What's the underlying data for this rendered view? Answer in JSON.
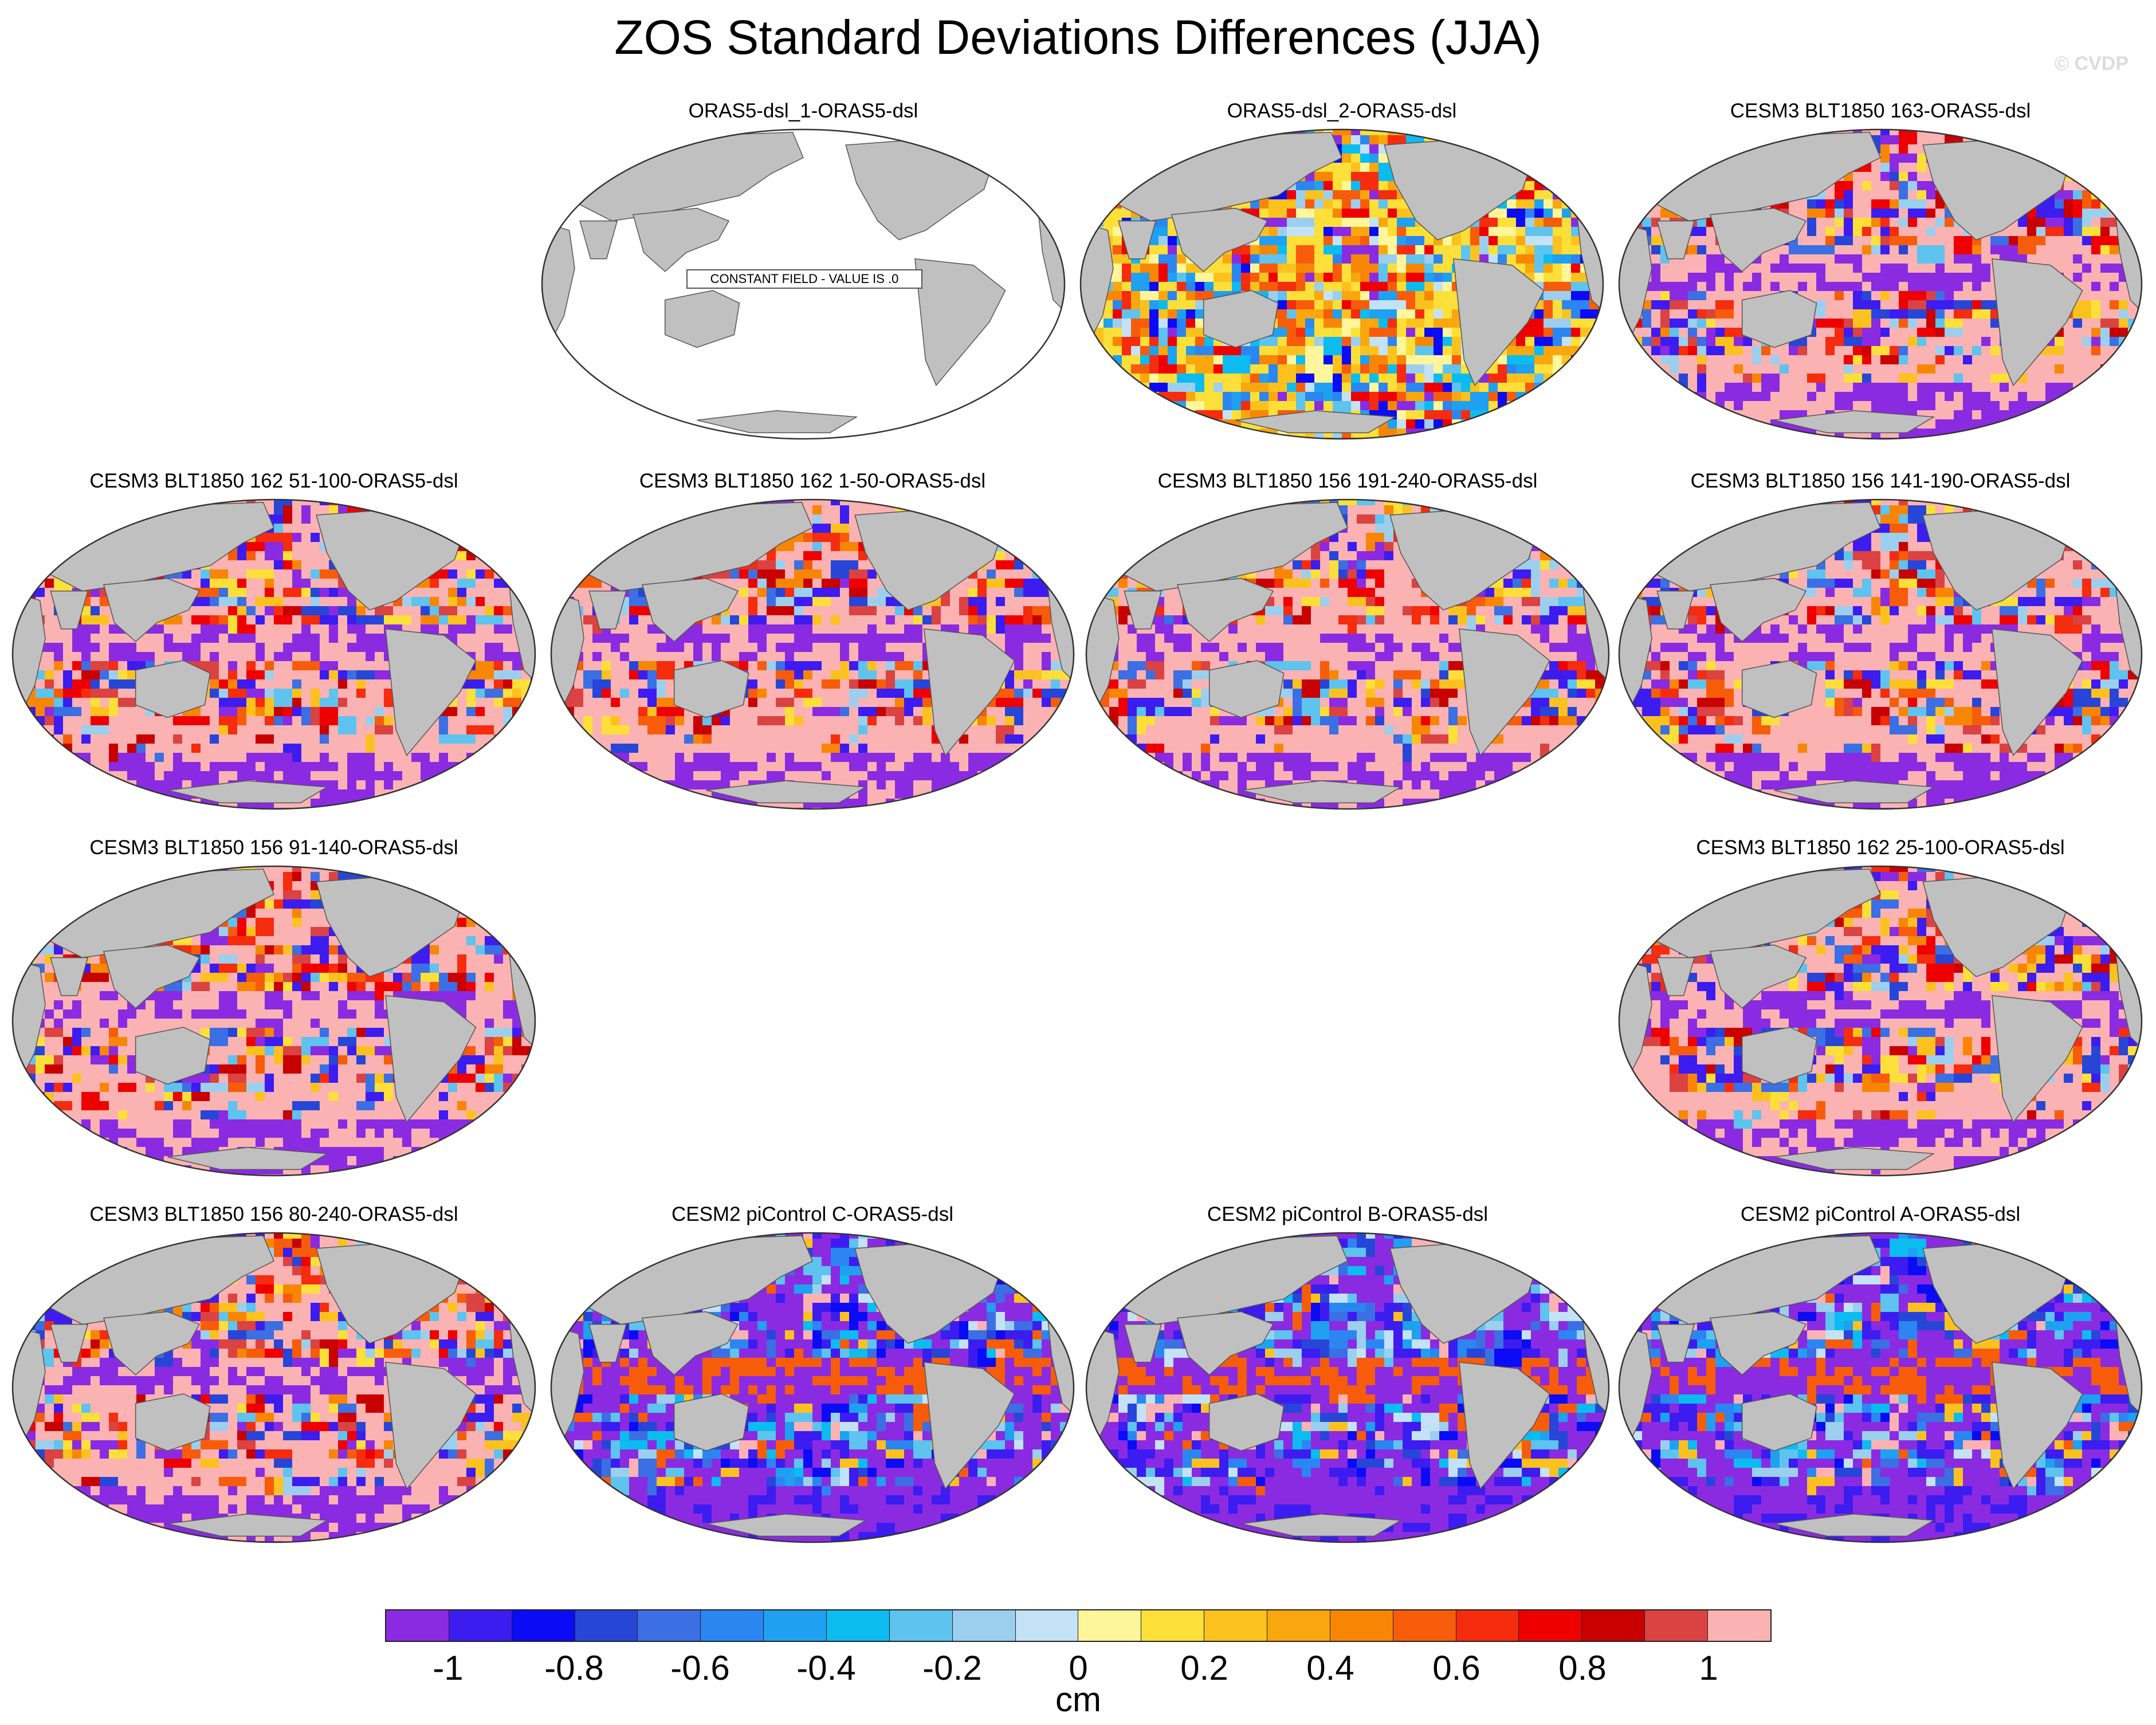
{
  "title": "ZOS Standard Deviations Differences (JJA)",
  "watermark": "© CVDP",
  "panels": [
    {
      "id": "p1",
      "title": "ORAS5-dsl_1-ORAS5-dsl",
      "pattern": "constant",
      "label": "CONSTANT FIELD - VALUE IS .0"
    },
    {
      "id": "p2",
      "title": "ORAS5-dsl_2-ORAS5-dsl",
      "pattern": "mixed"
    },
    {
      "id": "p3",
      "title": "CESM3 BLT1850 163-ORAS5-dsl",
      "pattern": "pink"
    },
    {
      "id": "p4",
      "title": "CESM3 BLT1850 162 51-100-ORAS5-dsl",
      "pattern": "pink"
    },
    {
      "id": "p5",
      "title": "CESM3 BLT1850 162 1-50-ORAS5-dsl",
      "pattern": "pink"
    },
    {
      "id": "p6",
      "title": "CESM3 BLT1850 156 191-240-ORAS5-dsl",
      "pattern": "pink"
    },
    {
      "id": "p7",
      "title": "CESM3 BLT1850 156 141-190-ORAS5-dsl",
      "pattern": "pink"
    },
    {
      "id": "p8",
      "title": "CESM3 BLT1850 156 91-140-ORAS5-dsl",
      "pattern": "pink"
    },
    {
      "id": "p9",
      "title": "CESM3 BLT1850 162 25-100-ORAS5-dsl",
      "pattern": "pink"
    },
    {
      "id": "p10",
      "title": "CESM3 BLT1850 156 80-240-ORAS5-dsl",
      "pattern": "pink"
    },
    {
      "id": "p11",
      "title": "CESM2 piControl C-ORAS5-dsl",
      "pattern": "purple"
    },
    {
      "id": "p12",
      "title": "CESM2 piControl B-ORAS5-dsl",
      "pattern": "purple"
    },
    {
      "id": "p13",
      "title": "CESM2 piControl A-ORAS5-dsl",
      "pattern": "purple"
    }
  ],
  "colorbar": {
    "colors": [
      "#8a2be2",
      "#3d1cf0",
      "#0b0bf5",
      "#2746d8",
      "#3b6fe3",
      "#2b86f2",
      "#1fa0f0",
      "#0cbcf0",
      "#5ec3ee",
      "#9ccfee",
      "#c4e2f5",
      "#fff59a",
      "#fddf3a",
      "#fbc21f",
      "#f9a70e",
      "#f88605",
      "#f75c0a",
      "#f52c0e",
      "#ef0000",
      "#c80000",
      "#db4242",
      "#fbb2b2"
    ],
    "ticks": [
      "-1",
      "-0.8",
      "-0.6",
      "-0.4",
      "-0.2",
      "0",
      "0.2",
      "0.4",
      "0.6",
      "0.8",
      "1"
    ],
    "units": "cm"
  },
  "land_color": "#c0c0c0"
}
